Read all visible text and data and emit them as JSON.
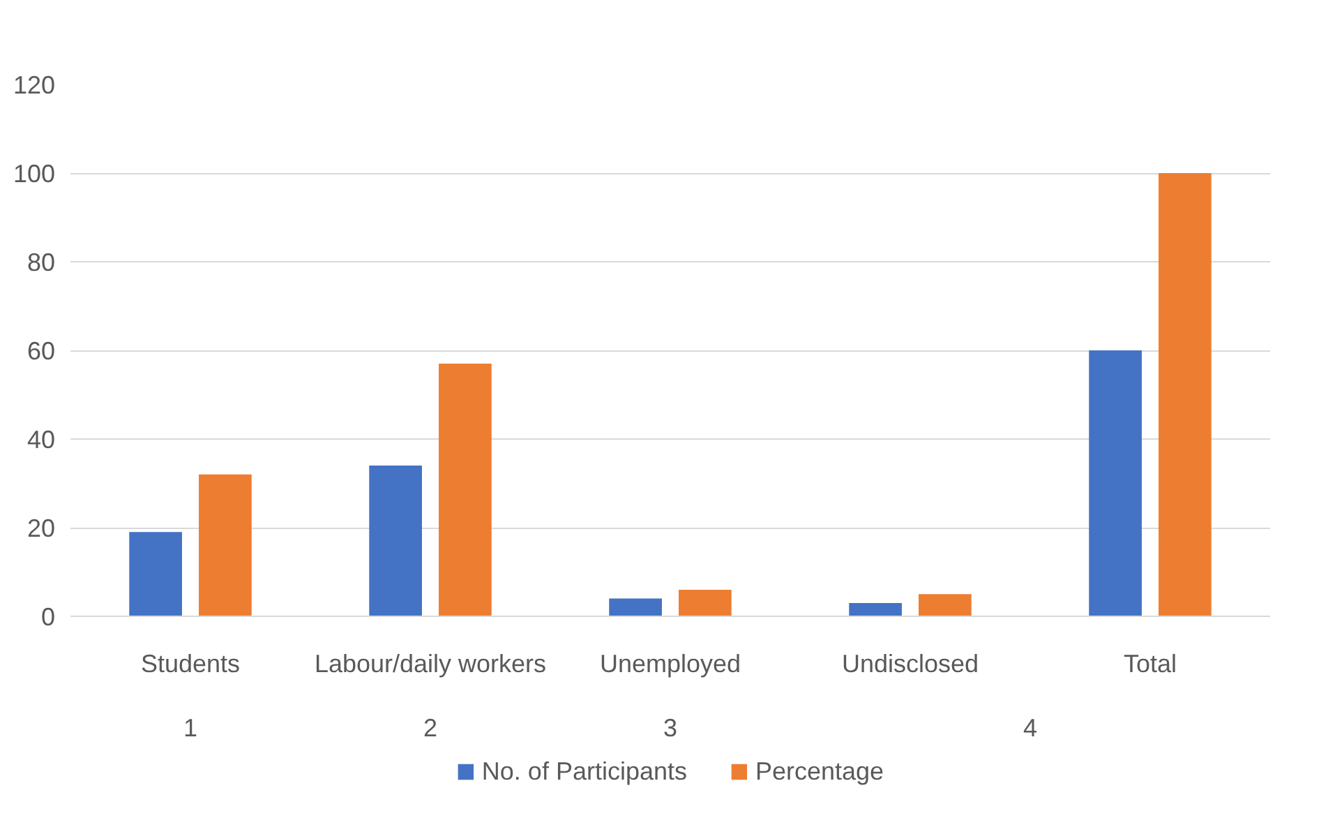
{
  "chart_data": {
    "type": "bar",
    "categories": [
      "Students",
      "Labour/daily workers",
      "Unemployed",
      "Undisclosed",
      "Total"
    ],
    "series": [
      {
        "name": "No. of Participants",
        "color": "#4472c4",
        "values": [
          19,
          34,
          4,
          3,
          60
        ]
      },
      {
        "name": "Percentage",
        "color": "#ed7d31",
        "values": [
          32,
          57,
          6,
          5,
          100
        ]
      }
    ],
    "ylim": [
      0,
      120
    ],
    "yticks": [
      0,
      20,
      40,
      60,
      80,
      100,
      120
    ],
    "grid": "y",
    "legend": "bottom",
    "annotations": [
      "1",
      "2",
      "3",
      "4"
    ]
  }
}
